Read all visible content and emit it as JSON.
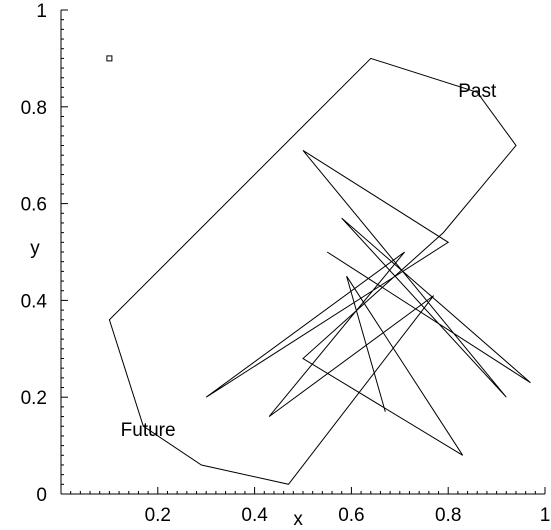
{
  "chart_data": {
    "type": "line",
    "title": "",
    "xlabel": "x",
    "ylabel": "y",
    "xlim": [
      0,
      1
    ],
    "ylim": [
      0,
      1
    ],
    "grid": false,
    "x_ticks": [
      0.2,
      0.4,
      0.6,
      0.8,
      1
    ],
    "x_tick_labels": [
      "0.2",
      "0.4",
      "0.6",
      "0.8",
      "1"
    ],
    "y_ticks": [
      0,
      0.2,
      0.4,
      0.6,
      0.8,
      1
    ],
    "y_tick_labels": [
      "0",
      "0.2",
      "0.4",
      "0.6",
      "0.8",
      "1"
    ],
    "annotations": [
      {
        "text": "Past",
        "x": 0.86,
        "y": 0.82
      },
      {
        "text": "Future",
        "x": 0.18,
        "y": 0.12
      }
    ],
    "start_marker": {
      "shape": "square",
      "x": 0.1,
      "y": 0.9
    },
    "series": [
      {
        "color": "#000000",
        "x": [
          0.55,
          0.97,
          0.58,
          0.92,
          0.5,
          0.8,
          0.3,
          0.71,
          0.43,
          0.77,
          0.47,
          0.29,
          0.17,
          0.1,
          0.64,
          0.86,
          0.94,
          0.79,
          0.5,
          0.83,
          0.59,
          0.67
        ],
        "y": [
          0.5,
          0.23,
          0.57,
          0.2,
          0.71,
          0.52,
          0.2,
          0.5,
          0.16,
          0.41,
          0.02,
          0.06,
          0.14,
          0.36,
          0.9,
          0.83,
          0.72,
          0.54,
          0.28,
          0.08,
          0.45,
          0.17
        ]
      }
    ]
  }
}
